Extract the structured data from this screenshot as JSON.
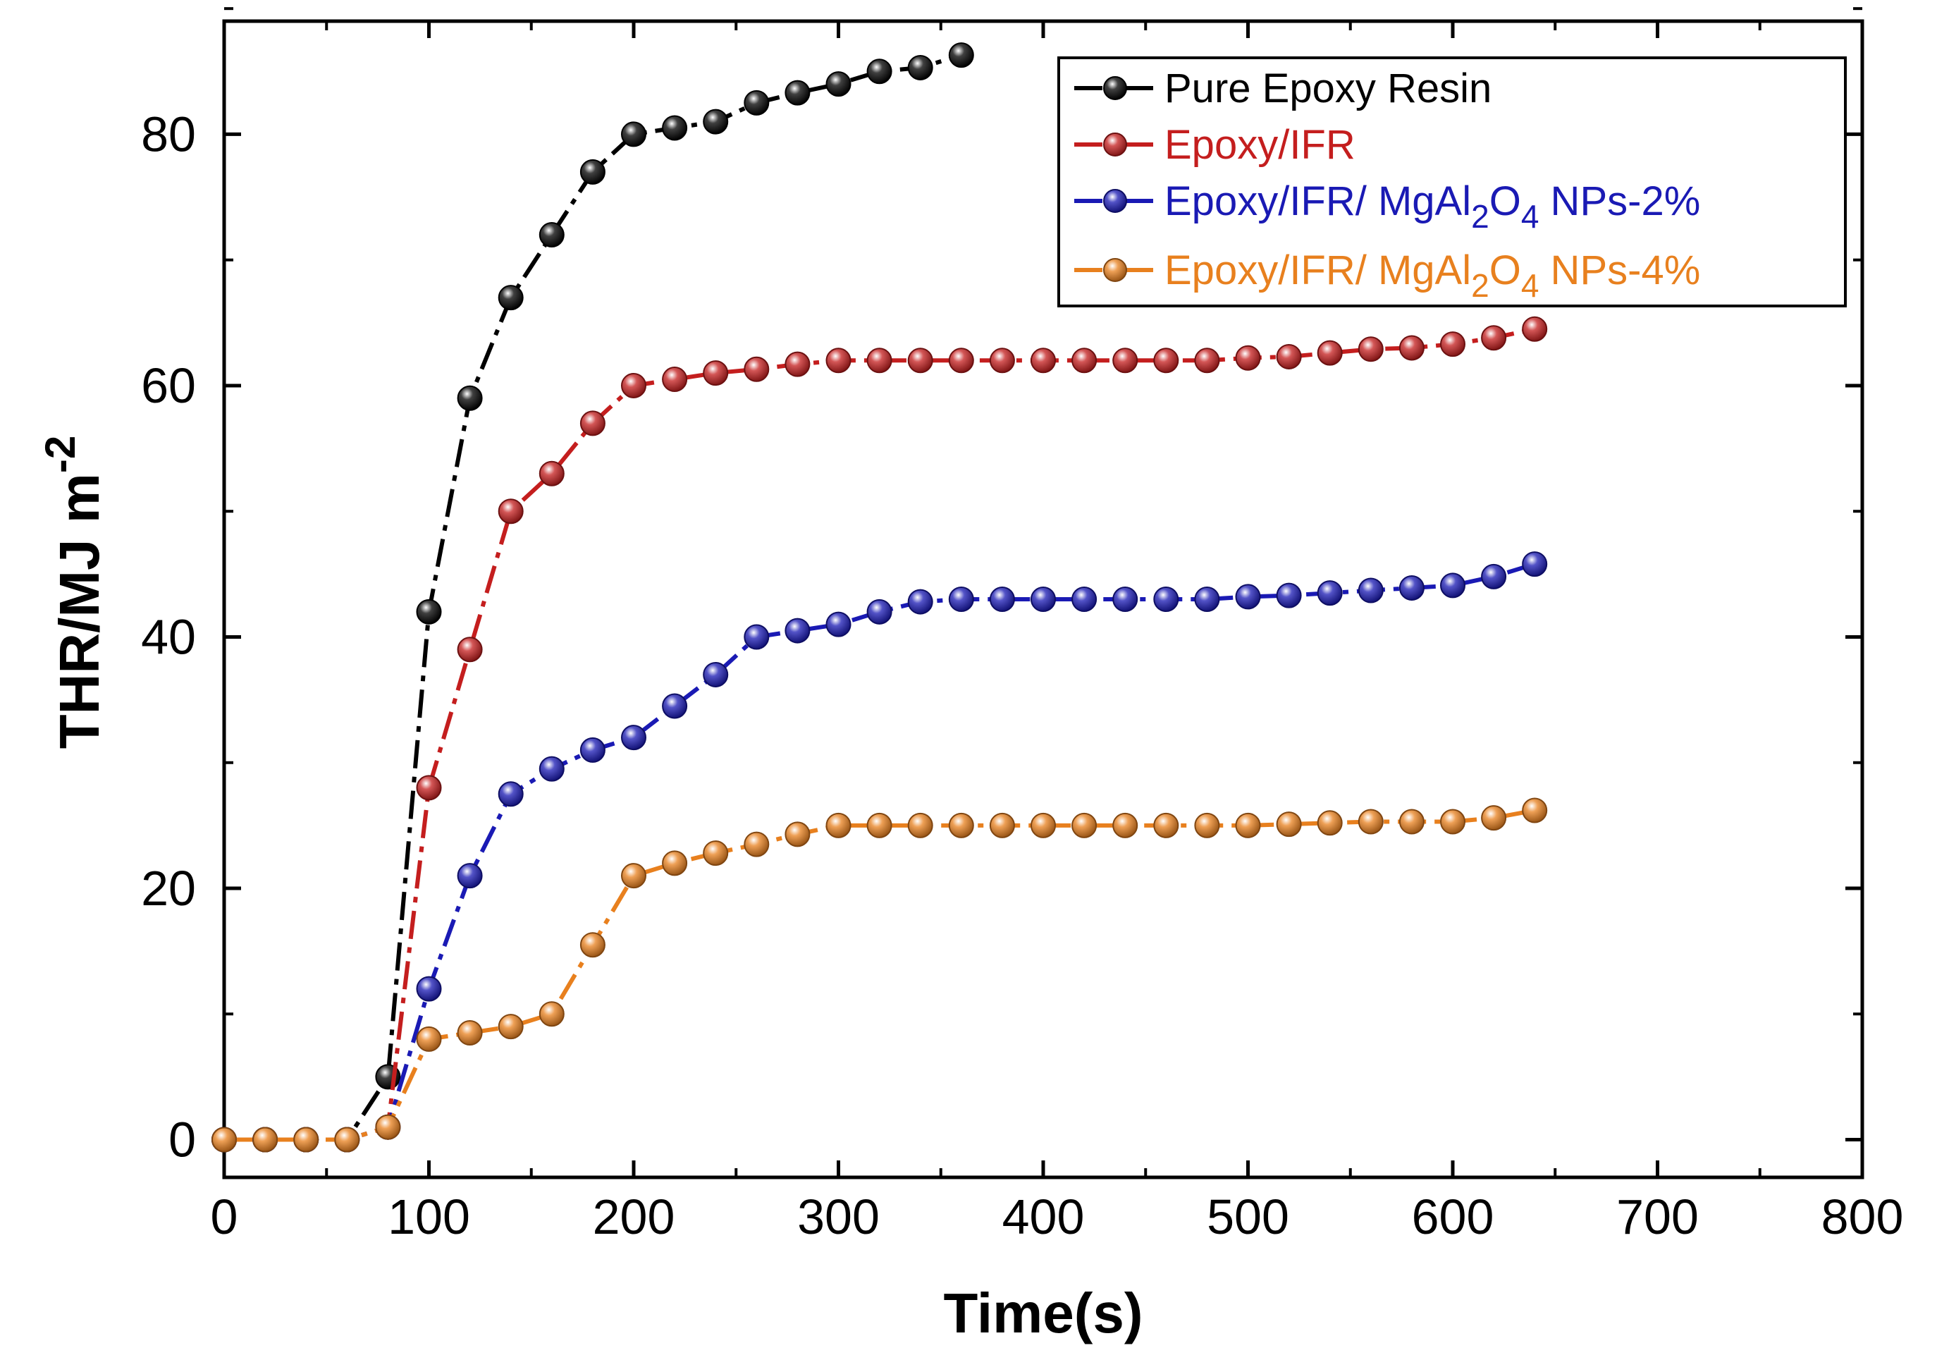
{
  "chart_data": {
    "type": "line",
    "title": "",
    "xlabel": "Time(s)",
    "ylabel_main": "THR/MJ m",
    "ylabel_sup": "-2",
    "xlim": [
      0,
      800
    ],
    "ylim": [
      -3,
      89
    ],
    "x_ticks": [
      0,
      100,
      200,
      300,
      400,
      500,
      600,
      700,
      800
    ],
    "x_tick_labels": [
      "0",
      "100",
      "200",
      "300",
      "400",
      "500",
      "600",
      "700",
      "800"
    ],
    "y_ticks": [
      0,
      20,
      40,
      60,
      80
    ],
    "y_tick_labels": [
      "0",
      "20",
      "40",
      "60",
      "80"
    ],
    "legend_position": "top-right",
    "series": [
      {
        "name": "Pure Epoxy Resin",
        "legend_parts": [
          "Pure Epoxy Resin"
        ],
        "color": "#000000",
        "x": [
          0,
          20,
          40,
          60,
          80,
          100,
          120,
          140,
          160,
          180,
          200,
          220,
          240,
          260,
          280,
          300,
          320,
          340,
          360
        ],
        "values": [
          0,
          0,
          0,
          0,
          5,
          42,
          59,
          67,
          72,
          77,
          80,
          80.5,
          81,
          82.5,
          83.3,
          84,
          85,
          85.3,
          86.3
        ]
      },
      {
        "name": "Epoxy/IFR",
        "legend_parts": [
          "Epoxy/IFR"
        ],
        "color": "#c41e1e",
        "x": [
          0,
          20,
          40,
          60,
          80,
          100,
          120,
          140,
          160,
          180,
          200,
          220,
          240,
          260,
          280,
          300,
          320,
          340,
          360,
          380,
          400,
          420,
          440,
          460,
          480,
          500,
          520,
          540,
          560,
          580,
          600,
          620,
          640
        ],
        "values": [
          0,
          0,
          0,
          0,
          1,
          28,
          39,
          50,
          53,
          57,
          60,
          60.5,
          61,
          61.3,
          61.7,
          62,
          62,
          62,
          62,
          62,
          62,
          62,
          62,
          62,
          62,
          62.2,
          62.3,
          62.6,
          62.9,
          63,
          63.3,
          63.8,
          64.5
        ]
      },
      {
        "name": "Epoxy/IFR/ MgAl2O4 NPs-2%",
        "legend_parts": [
          "Epoxy/IFR/ MgAl",
          "2",
          "O",
          "4",
          " NPs-2%"
        ],
        "color": "#1a1ab4",
        "x": [
          0,
          20,
          40,
          60,
          80,
          100,
          120,
          140,
          160,
          180,
          200,
          220,
          240,
          260,
          280,
          300,
          320,
          340,
          360,
          380,
          400,
          420,
          440,
          460,
          480,
          500,
          520,
          540,
          560,
          580,
          600,
          620,
          640
        ],
        "values": [
          0,
          0,
          0,
          0,
          1,
          12,
          21,
          27.5,
          29.5,
          31,
          32,
          34.5,
          37,
          40,
          40.5,
          41,
          42,
          42.8,
          43,
          43,
          43,
          43,
          43,
          43,
          43,
          43.2,
          43.3,
          43.5,
          43.7,
          43.9,
          44.1,
          44.8,
          45.8
        ]
      },
      {
        "name": "Epoxy/IFR/ MgAl2O4 NPs-4%",
        "legend_parts": [
          "Epoxy/IFR/ MgAl",
          "2",
          "O",
          "4",
          " NPs-4%"
        ],
        "color": "#e8801e",
        "x": [
          0,
          20,
          40,
          60,
          80,
          100,
          120,
          140,
          160,
          180,
          200,
          220,
          240,
          260,
          280,
          300,
          320,
          340,
          360,
          380,
          400,
          420,
          440,
          460,
          480,
          500,
          520,
          540,
          560,
          580,
          600,
          620,
          640
        ],
        "values": [
          0,
          0,
          0,
          0,
          1,
          8,
          8.5,
          9,
          10,
          15.5,
          21,
          22,
          22.8,
          23.5,
          24.3,
          25,
          25,
          25,
          25,
          25,
          25,
          25,
          25,
          25,
          25,
          25,
          25.1,
          25.2,
          25.3,
          25.3,
          25.3,
          25.6,
          26.2
        ]
      }
    ]
  }
}
